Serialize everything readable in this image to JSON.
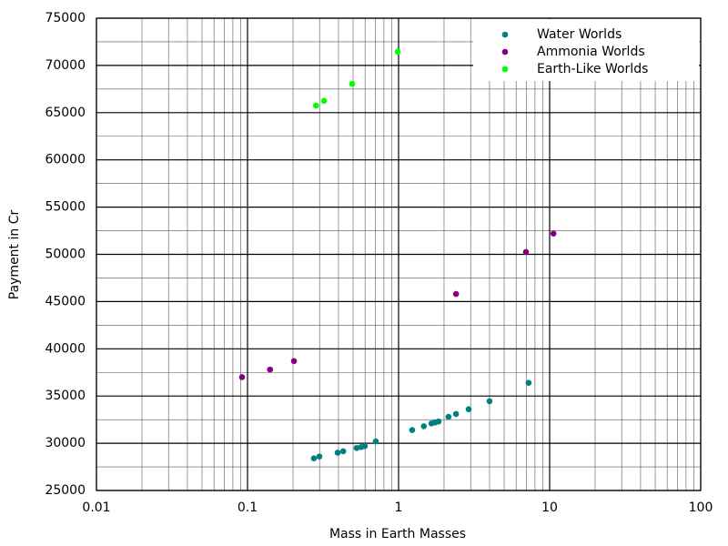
{
  "chart_data": {
    "type": "scatter",
    "xlabel": "Mass in Earth Masses",
    "ylabel": "Payment in Cr",
    "xscale": "log",
    "xlim": [
      0.01,
      100
    ],
    "xticks": [
      0.01,
      0.1,
      1,
      10,
      100
    ],
    "ylim": [
      25000,
      75000
    ],
    "yticks": [
      25000,
      30000,
      35000,
      40000,
      45000,
      50000,
      55000,
      60000,
      65000,
      70000,
      75000
    ],
    "grid": true,
    "legend": "top-right",
    "series": [
      {
        "name": "Water Worlds",
        "color": "#008080",
        "x": [
          0.275,
          0.299,
          0.395,
          0.43,
          0.528,
          0.566,
          0.598,
          0.707,
          1.23,
          1.47,
          1.65,
          1.74,
          1.84,
          2.14,
          2.4,
          2.91,
          4.0,
          7.26
        ],
        "values": [
          28400,
          28600,
          29000,
          29150,
          29500,
          29600,
          29700,
          30200,
          31400,
          31800,
          32100,
          32200,
          32300,
          32800,
          33100,
          33600,
          34450,
          36400
        ]
      },
      {
        "name": "Ammonia Worlds",
        "color": "#800080",
        "x": [
          0.092,
          0.141,
          0.203,
          2.4,
          6.97,
          10.6
        ],
        "values": [
          37000,
          37800,
          38700,
          45800,
          50250,
          52200
        ]
      },
      {
        "name": "Earth-Like Worlds",
        "color": "#00ff00",
        "x": [
          0.284,
          0.321,
          0.493,
          0.986
        ],
        "values": [
          65750,
          66250,
          68050,
          71450
        ]
      }
    ]
  }
}
